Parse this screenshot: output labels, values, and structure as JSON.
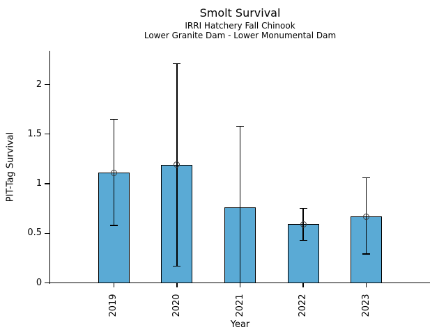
{
  "chart_data": {
    "type": "bar",
    "title": "Smolt Survival",
    "subtitle_line1": "IRRI Hatchery Fall Chinook",
    "subtitle_line2": "Lower Granite Dam - Lower Monumental Dam",
    "xlabel": "Year",
    "ylabel": "PIT-Tag Survival",
    "categories": [
      "2019",
      "2020",
      "2021",
      "2022",
      "2023"
    ],
    "series": [
      {
        "name": "PIT-Tag Survival",
        "values": [
          1.11,
          1.19,
          0.76,
          0.59,
          0.67
        ],
        "ci_lower": [
          0.58,
          0.17,
          0.0,
          0.43,
          0.29
        ],
        "ci_upper": [
          1.65,
          2.21,
          1.58,
          0.75,
          1.06
        ],
        "point_marker_shown": [
          true,
          true,
          false,
          true,
          true
        ]
      }
    ],
    "ytick_labels": [
      "0",
      "0.5",
      "1",
      "1.5",
      "2"
    ],
    "ytick_values": [
      0,
      0.5,
      1,
      1.5,
      2
    ],
    "ylim": [
      0,
      2.34
    ],
    "grid": false,
    "legend_position": null,
    "bar_color": "#5aaad5",
    "bar_edge_color": "#000000",
    "error_bar_color": "#000000",
    "background_color": "#ffffff"
  }
}
